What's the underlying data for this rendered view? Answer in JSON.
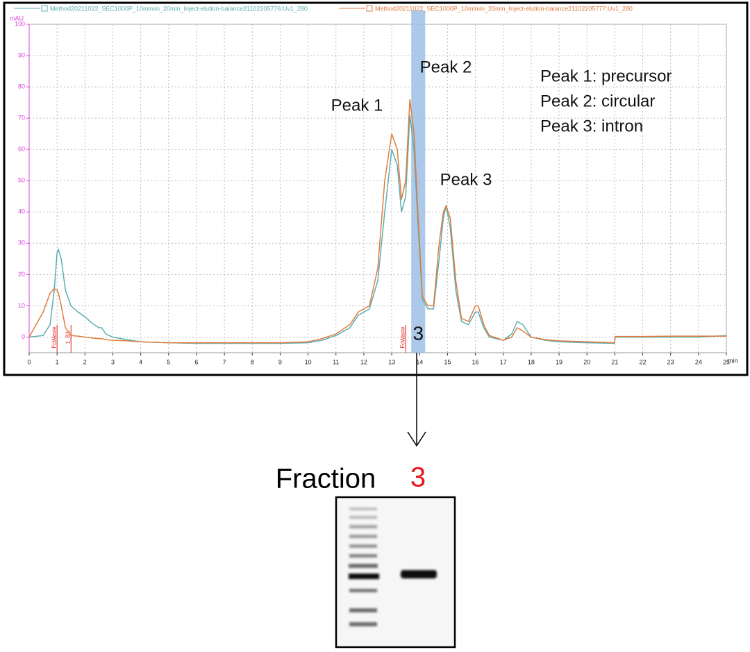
{
  "chart_data": {
    "type": "line",
    "x_label": "min",
    "y_label": "mAU",
    "xlim": [
      0,
      25
    ],
    "xticks": [
      0,
      1,
      2,
      3,
      4,
      5,
      6,
      7,
      8,
      9,
      10,
      11,
      12,
      13,
      14,
      15,
      16,
      17,
      18,
      19,
      20,
      21,
      22,
      23,
      24,
      25
    ],
    "ylim": [
      -5,
      100
    ],
    "yticks": [
      0,
      10,
      20,
      30,
      40,
      50,
      60,
      70,
      80,
      90,
      100
    ],
    "grid": true,
    "x": [
      0,
      0.5,
      0.75,
      0.9,
      1.0,
      1.05,
      1.15,
      1.3,
      1.5,
      1.75,
      2.0,
      2.25,
      2.5,
      2.6,
      2.75,
      3,
      3.5,
      4,
      5,
      6,
      7,
      8,
      9,
      10,
      10.5,
      11,
      11.5,
      11.8,
      12.2,
      12.5,
      12.75,
      13.0,
      13.2,
      13.35,
      13.5,
      13.65,
      13.8,
      13.95,
      14.1,
      14.3,
      14.5,
      14.7,
      14.85,
      14.95,
      15.1,
      15.3,
      15.5,
      15.75,
      16.0,
      16.1,
      16.3,
      16.5,
      17,
      17.3,
      17.5,
      17.7,
      18,
      18.5,
      19,
      20,
      20.99,
      21.01,
      22,
      23,
      24,
      25
    ],
    "series": [
      {
        "name": "Method20211022_SEC1000P_10mlmin_20min_Inject-elution-balance21102205776:Uv1_280",
        "color": "#5aaeb0",
        "values": [
          0,
          0.5,
          4,
          15,
          27,
          28,
          25,
          15,
          10,
          8,
          6.5,
          4.5,
          3,
          3,
          1,
          0,
          -0.8,
          -1.5,
          -1.8,
          -2,
          -2,
          -2,
          -2,
          -1.8,
          -1,
          0.5,
          3,
          7,
          9,
          18,
          40,
          60,
          55,
          40,
          45,
          71,
          60,
          35,
          12,
          9,
          9,
          25,
          38,
          42,
          35,
          15,
          5,
          4,
          8,
          8,
          3,
          0,
          -1,
          1,
          5,
          4,
          0,
          -1,
          -1.5,
          -1.8,
          -2,
          0,
          0,
          0,
          0,
          0.5
        ]
      },
      {
        "name": "Method20211022_SEC1000P_10mlmin_20min_Inject-elution-balance21102205777:Uv1_280",
        "color": "#e07b3c",
        "values": [
          0,
          8,
          14,
          15.5,
          15,
          14,
          10,
          3,
          0.5,
          0.3,
          0,
          -0.3,
          -0.5,
          -0.5,
          -0.8,
          -1,
          -1.2,
          -1.5,
          -1.8,
          -1.8,
          -1.8,
          -1.8,
          -1.8,
          -1.5,
          -0.5,
          1,
          4,
          8,
          10,
          22,
          50,
          65,
          60,
          44,
          50,
          76,
          65,
          38,
          13,
          10,
          10,
          30,
          40,
          42,
          38,
          18,
          6,
          5,
          10,
          10,
          4,
          0.5,
          -1,
          0,
          3,
          2,
          0,
          -0.8,
          -1.2,
          -1.5,
          -1.8,
          0.2,
          0.2,
          0.3,
          0.3,
          0.3
        ]
      }
    ],
    "events": [
      {
        "x": 1.0,
        "label": "FcWaste"
      },
      {
        "x": 1.5,
        "label": "1_B1"
      },
      {
        "x": 13.5,
        "label": "FcWaste"
      }
    ],
    "highlight": {
      "xrange": [
        13.7,
        14.2
      ],
      "label": "3"
    },
    "peak_labels": [
      "Peak 1",
      "Peak 2",
      "Peak 3"
    ],
    "annotations": [
      "Peak 1: precursor",
      "Peak 2: circular",
      "Peak 3: intron"
    ]
  },
  "gel": {
    "header": "Fraction",
    "lane_label": "3"
  }
}
